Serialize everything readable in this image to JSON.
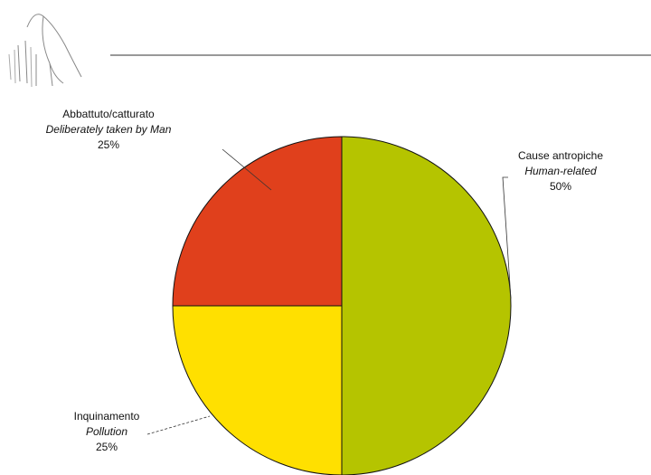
{
  "chart_data": {
    "type": "pie",
    "categories": [
      "Cause antropiche",
      "Inquinamento",
      "Abbattuto/catturato"
    ],
    "translations": [
      "Human-related",
      "Pollution",
      "Deliberately taken by Man"
    ],
    "values": [
      50,
      25,
      25
    ],
    "value_labels": [
      "50%",
      "25%",
      "25%"
    ],
    "colors": [
      "#b5c400",
      "#ffe000",
      "#e0401c"
    ]
  }
}
